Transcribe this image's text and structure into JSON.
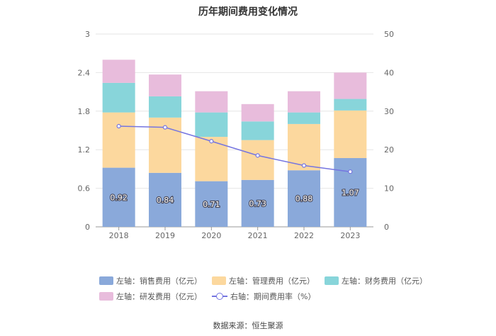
{
  "title": "历年期间费用变化情况",
  "source": "数据来源：恒生聚源",
  "chart_data": {
    "type": "bar",
    "stacked": true,
    "title": "历年期间费用变化情况",
    "categories": [
      "2018",
      "2019",
      "2020",
      "2021",
      "2022",
      "2023"
    ],
    "left_axis": {
      "ylim": [
        0,
        3
      ],
      "ticks": [
        "0",
        "0.6",
        "1.2",
        "1.8",
        "2.4",
        "3"
      ]
    },
    "right_axis": {
      "ylim": [
        0,
        50
      ],
      "ticks": [
        "0",
        "10",
        "20",
        "30",
        "40",
        "50"
      ]
    },
    "series": [
      {
        "name": "左轴：销售费用（亿元）",
        "axis": "left",
        "color": "#8aa9da",
        "values": [
          0.92,
          0.84,
          0.71,
          0.73,
          0.88,
          1.07
        ],
        "labels": [
          "0.92",
          "0.84",
          "0.71",
          "0.73",
          "0.88",
          "1.07"
        ]
      },
      {
        "name": "左轴：管理费用（亿元）",
        "axis": "left",
        "color": "#fcd89e",
        "values": [
          0.86,
          0.86,
          0.69,
          0.62,
          0.72,
          0.74
        ]
      },
      {
        "name": "左轴：财务费用（亿元）",
        "axis": "left",
        "color": "#88d5da",
        "values": [
          0.46,
          0.33,
          0.38,
          0.29,
          0.18,
          0.18
        ]
      },
      {
        "name": "左轴：研发费用（亿元）",
        "axis": "left",
        "color": "#e8bcdc",
        "values": [
          0.36,
          0.34,
          0.33,
          0.27,
          0.33,
          0.41
        ]
      },
      {
        "name": "右轴：期间费用率（%）",
        "axis": "right",
        "type": "line",
        "color": "#7575e0",
        "values": [
          26.1,
          25.8,
          22.2,
          18.5,
          15.9,
          14.3
        ]
      }
    ]
  }
}
